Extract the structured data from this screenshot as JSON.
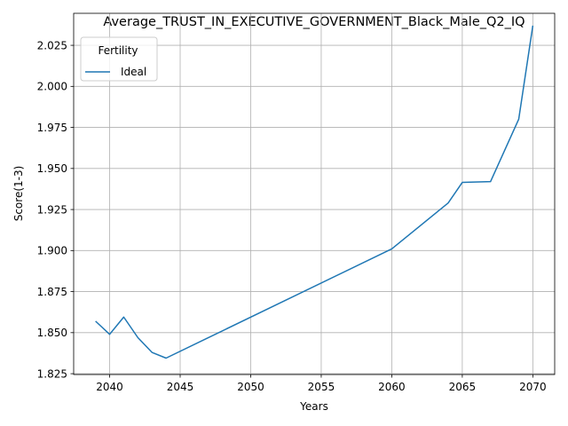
{
  "chart_data": {
    "type": "line",
    "title": "Average_TRUST_IN_EXECUTIVE_GOVERNMENT_Black_Male_Q2_IQ",
    "xlabel": "Years",
    "ylabel": "Score(1-3)",
    "xlim": [
      2037.45,
      2071.55
    ],
    "ylim": [
      1.8245,
      2.0445
    ],
    "xticks": [
      2040,
      2045,
      2050,
      2055,
      2060,
      2065,
      2070
    ],
    "yticks": [
      1.825,
      1.85,
      1.875,
      1.9,
      1.925,
      1.95,
      1.975,
      2.0,
      2.025
    ],
    "grid": true,
    "legend": {
      "title": "Fertility",
      "placement": "top-left"
    },
    "series": [
      {
        "name": "Ideal",
        "color": "#1f77b4",
        "x": [
          2039,
          2040,
          2041,
          2042,
          2043,
          2044,
          2060,
          2064,
          2065,
          2067,
          2069,
          2070
        ],
        "y": [
          1.857,
          1.849,
          1.8595,
          1.847,
          1.838,
          1.8345,
          1.901,
          1.929,
          1.9415,
          1.942,
          1.98,
          2.037
        ]
      }
    ]
  }
}
